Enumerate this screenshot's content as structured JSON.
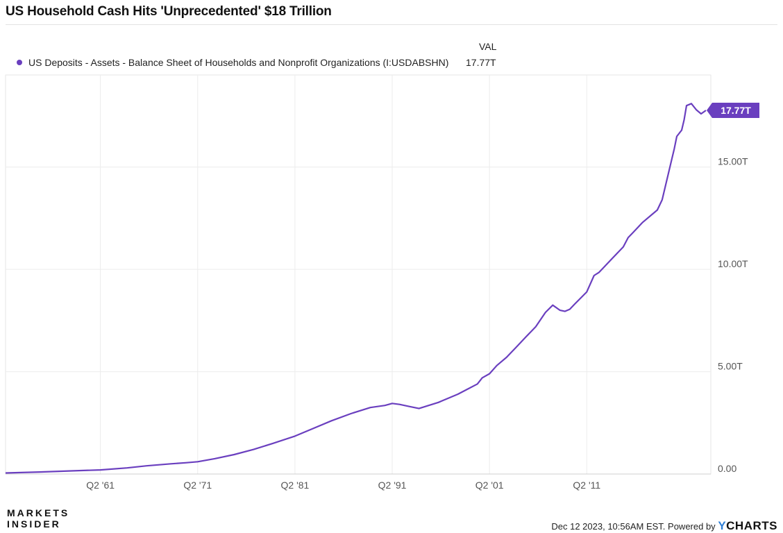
{
  "title": "US Household Cash Hits 'Unprecedented' $18 Trillion",
  "legend": {
    "column_header": "VAL",
    "series_label": "US Deposits - Assets - Balance Sheet of Households and Nonprofit Organizations (I:USDABSHN)",
    "series_value": "17.77T"
  },
  "colors": {
    "series": "#6a3fbf",
    "grid": "#ececec",
    "axis_text": "#555555"
  },
  "footer": {
    "logo_line1": "MARKETS",
    "logo_line2": "INSIDER",
    "timestamp": "Dec 12 2023, 10:56AM EST. Powered by",
    "brand_y": "Y",
    "brand_rest": "CHARTS"
  },
  "chart_data": {
    "type": "line",
    "x_tick_labels": [
      "Q2 '61",
      "Q2 '71",
      "Q2 '81",
      "Q2 '91",
      "Q2 '01",
      "Q2 '11"
    ],
    "x_tick_values": [
      1961.25,
      1971.25,
      1981.25,
      1991.25,
      2001.25,
      2011.25
    ],
    "y_tick_labels": [
      "0.00",
      "5.00T",
      "10.00T",
      "15.00T"
    ],
    "y_tick_values": [
      0,
      5,
      10,
      15
    ],
    "y_unit": "trillions USD",
    "xlim": [
      1951.5,
      2024.0
    ],
    "ylim": [
      0,
      19.5
    ],
    "grid": true,
    "last_value_label": "17.77T",
    "series": [
      {
        "name": "US Deposits - Assets - Balance Sheet of Households and Nonprofit Organizations (I:USDABSHN)",
        "x": [
          1951.5,
          1955,
          1958,
          1961.25,
          1964,
          1966,
          1968.5,
          1970,
          1971.25,
          1973,
          1975,
          1977,
          1979,
          1981.25,
          1983,
          1985,
          1987,
          1989,
          1990.5,
          1991.25,
          1992,
          1993,
          1994,
          1995,
          1996,
          1997,
          1998,
          1999,
          2000,
          2000.5,
          2001.25,
          2002,
          2003,
          2004,
          2005,
          2006,
          2007,
          2007.75,
          2008.5,
          2009,
          2009.5,
          2010,
          2011.25,
          2012,
          2012.5,
          2013,
          2014,
          2015,
          2015.5,
          2016,
          2017,
          2018,
          2018.5,
          2019,
          2019.5,
          2020,
          2020.25,
          2020.5,
          2021,
          2021.25,
          2021.5,
          2022,
          2022.25,
          2022.5,
          2023,
          2023.5
        ],
        "y": [
          0.05,
          0.1,
          0.15,
          0.2,
          0.3,
          0.4,
          0.5,
          0.55,
          0.6,
          0.75,
          0.95,
          1.2,
          1.5,
          1.85,
          2.2,
          2.6,
          2.95,
          3.25,
          3.35,
          3.45,
          3.4,
          3.3,
          3.2,
          3.35,
          3.5,
          3.7,
          3.9,
          4.15,
          4.4,
          4.7,
          4.9,
          5.3,
          5.7,
          6.2,
          6.7,
          7.2,
          7.9,
          8.25,
          8.0,
          7.95,
          8.05,
          8.3,
          8.9,
          9.7,
          9.85,
          10.1,
          10.6,
          11.1,
          11.55,
          11.8,
          12.3,
          12.7,
          12.9,
          13.4,
          14.4,
          15.4,
          15.9,
          16.5,
          16.8,
          17.3,
          18.0,
          18.1,
          17.95,
          17.8,
          17.6,
          17.77
        ]
      }
    ]
  }
}
